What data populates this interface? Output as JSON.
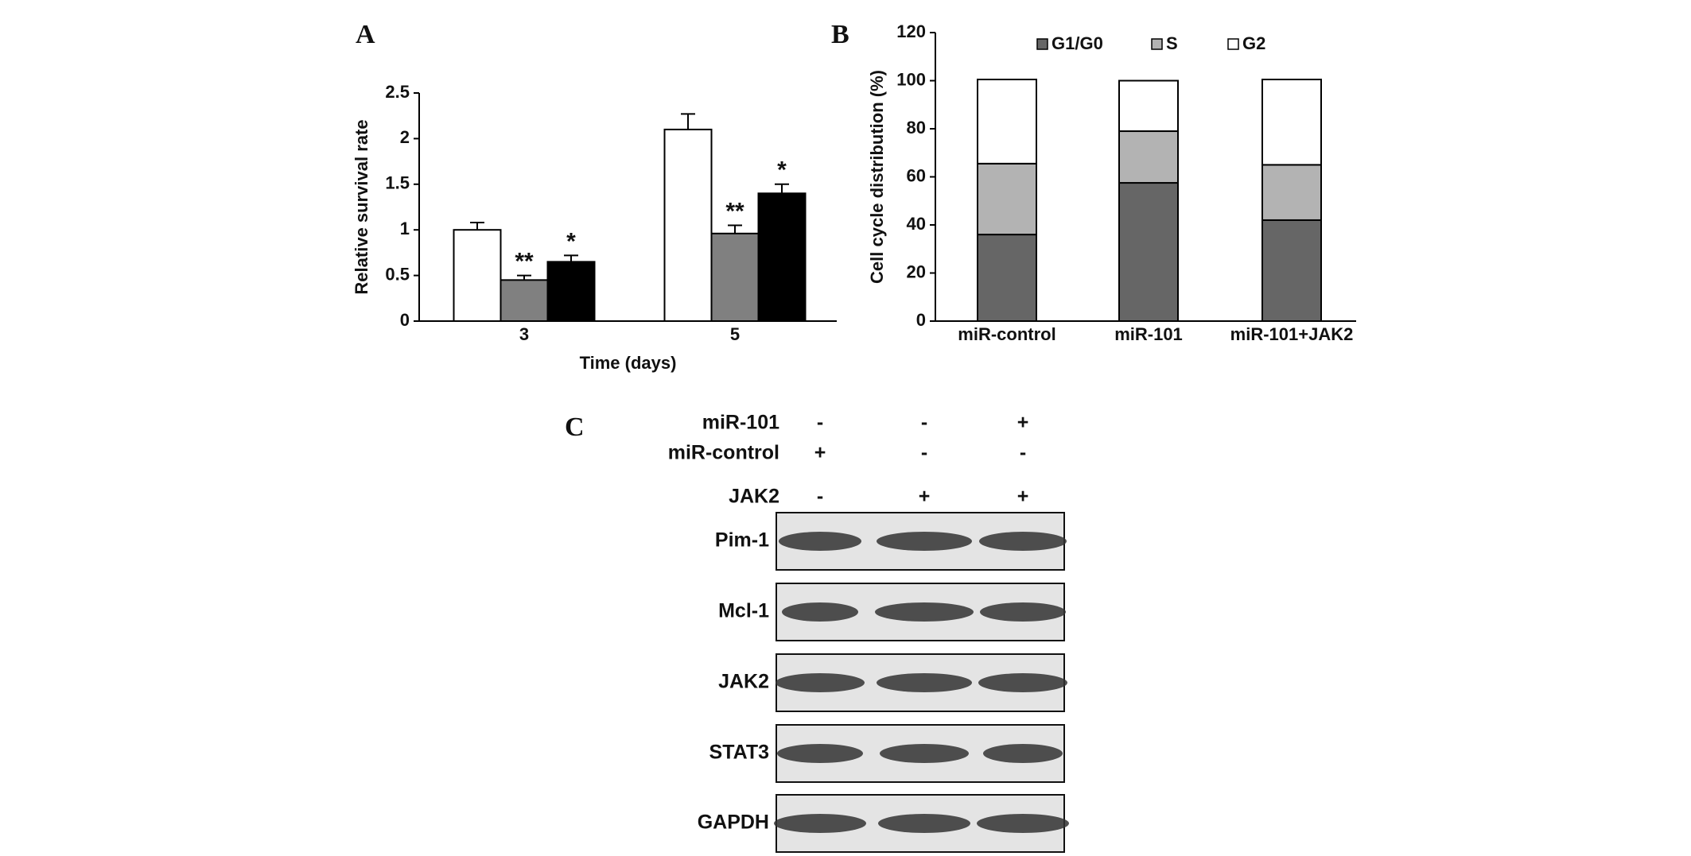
{
  "chart_data": [
    {
      "type": "bar",
      "panel": "A",
      "xlabel": "Time (days)",
      "ylabel": "Relative survival rate",
      "categories": [
        "3",
        "5"
      ],
      "series": [
        {
          "color": "#ffffff",
          "values": [
            1.0,
            2.1
          ],
          "errors": [
            0.08,
            0.17
          ]
        },
        {
          "color": "#808080",
          "values": [
            0.45,
            0.96
          ],
          "errors": [
            0.05,
            0.09
          ],
          "significance": [
            "**",
            "**"
          ]
        },
        {
          "color": "#000000",
          "values": [
            0.65,
            1.4
          ],
          "errors": [
            0.07,
            0.1
          ],
          "significance": [
            "*",
            "*"
          ]
        }
      ],
      "ylim": [
        0,
        2.5
      ],
      "yticks": [
        0,
        0.5,
        1,
        1.5,
        2,
        2.5
      ],
      "grid": false
    },
    {
      "type": "bar",
      "stacked": true,
      "panel": "B",
      "ylabel": "Cell cycle distribution (%)",
      "categories": [
        "miR-control",
        "miR-101",
        "miR-101+JAK2"
      ],
      "series": [
        {
          "name": "G1/G0",
          "color": "#666666",
          "values": [
            36,
            57.5,
            42
          ]
        },
        {
          "name": "S",
          "color": "#b3b3b3",
          "values": [
            29.5,
            21.5,
            23
          ]
        },
        {
          "name": "G2",
          "color": "#ffffff",
          "values": [
            35,
            21,
            35.5
          ]
        }
      ],
      "ylim": [
        0,
        120
      ],
      "yticks": [
        0,
        20,
        40,
        60,
        80,
        100,
        120
      ],
      "grid": false,
      "legend": "top"
    }
  ],
  "blot": {
    "panel": "C",
    "conditions": [
      {
        "name": "miR-101",
        "signs": [
          "-",
          "-",
          "+"
        ]
      },
      {
        "name": "miR-control",
        "signs": [
          "+",
          "-",
          "-"
        ]
      },
      {
        "name": "JAK2",
        "signs": [
          "-",
          "+",
          "+"
        ]
      }
    ],
    "rows": [
      "Pim-1",
      "Mcl-1",
      "JAK2",
      "STAT3",
      "GAPDH"
    ]
  }
}
